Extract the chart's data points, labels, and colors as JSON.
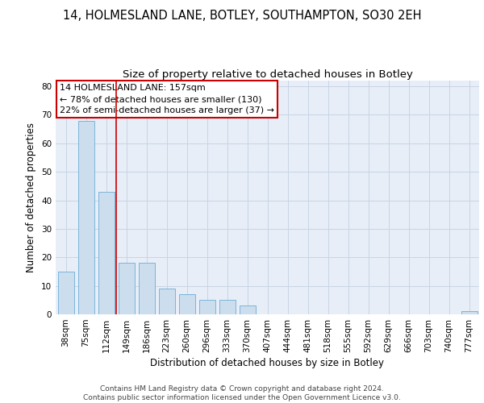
{
  "title": "14, HOLMESLAND LANE, BOTLEY, SOUTHAMPTON, SO30 2EH",
  "subtitle": "Size of property relative to detached houses in Botley",
  "xlabel": "Distribution of detached houses by size in Botley",
  "ylabel": "Number of detached properties",
  "categories": [
    "38sqm",
    "75sqm",
    "112sqm",
    "149sqm",
    "186sqm",
    "223sqm",
    "260sqm",
    "296sqm",
    "333sqm",
    "370sqm",
    "407sqm",
    "444sqm",
    "481sqm",
    "518sqm",
    "555sqm",
    "592sqm",
    "629sqm",
    "666sqm",
    "703sqm",
    "740sqm",
    "777sqm"
  ],
  "values": [
    15,
    68,
    43,
    18,
    18,
    9,
    7,
    5,
    5,
    3,
    0,
    0,
    0,
    0,
    0,
    0,
    0,
    0,
    0,
    0,
    1
  ],
  "bar_color": "#ccdded",
  "bar_edge_color": "#6baed6",
  "annotation_text": "14 HOLMESLAND LANE: 157sqm\n← 78% of detached houses are smaller (130)\n22% of semi-detached houses are larger (37) →",
  "annotation_box_color": "#ffffff",
  "annotation_box_edge": "#cc0000",
  "red_line_color": "#cc0000",
  "grid_color": "#c8d4e4",
  "background_color": "#e8eef8",
  "ylim": [
    0,
    82
  ],
  "yticks": [
    0,
    10,
    20,
    30,
    40,
    50,
    60,
    70,
    80
  ],
  "footer": "Contains HM Land Registry data © Crown copyright and database right 2024.\nContains public sector information licensed under the Open Government Licence v3.0.",
  "title_fontsize": 10.5,
  "subtitle_fontsize": 9.5,
  "xlabel_fontsize": 8.5,
  "ylabel_fontsize": 8.5,
  "tick_fontsize": 7.5,
  "annotation_fontsize": 8,
  "footer_fontsize": 6.5
}
